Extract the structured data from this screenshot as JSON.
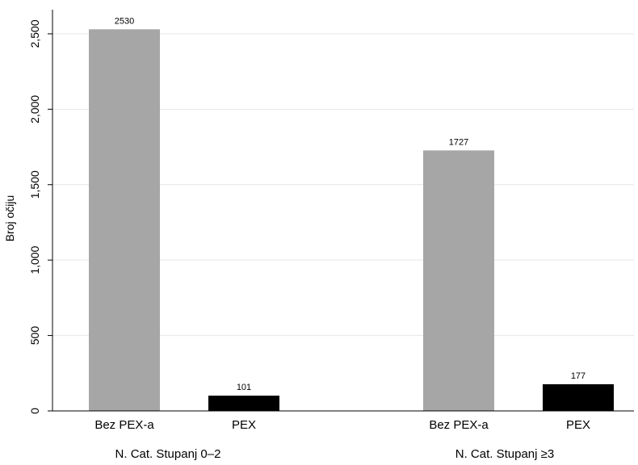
{
  "chart_data": {
    "type": "bar",
    "title": "",
    "xlabel": "",
    "ylabel": "Broj očiju",
    "ylim": [
      0,
      2600
    ],
    "yticks": [
      0,
      500,
      1000,
      1500,
      2000,
      2500
    ],
    "ytick_labels": [
      "0",
      "500",
      "1,000",
      "1,500",
      "2,000",
      "2,500"
    ],
    "grid": true,
    "groups": [
      {
        "label": "N. Cat. Stupanj 0–2",
        "bars": [
          {
            "category": "Bez PEX-a",
            "value": 2530,
            "label": "2530",
            "color": "#a6a6a6"
          },
          {
            "category": "PEX",
            "value": 101,
            "label": "101",
            "color": "#000000"
          }
        ]
      },
      {
        "label": "N. Cat. Stupanj ≥3",
        "bars": [
          {
            "category": "Bez PEX-a",
            "value": 1727,
            "label": "1727",
            "color": "#a6a6a6"
          },
          {
            "category": "PEX",
            "value": 177,
            "label": "177",
            "color": "#000000"
          }
        ]
      }
    ]
  }
}
